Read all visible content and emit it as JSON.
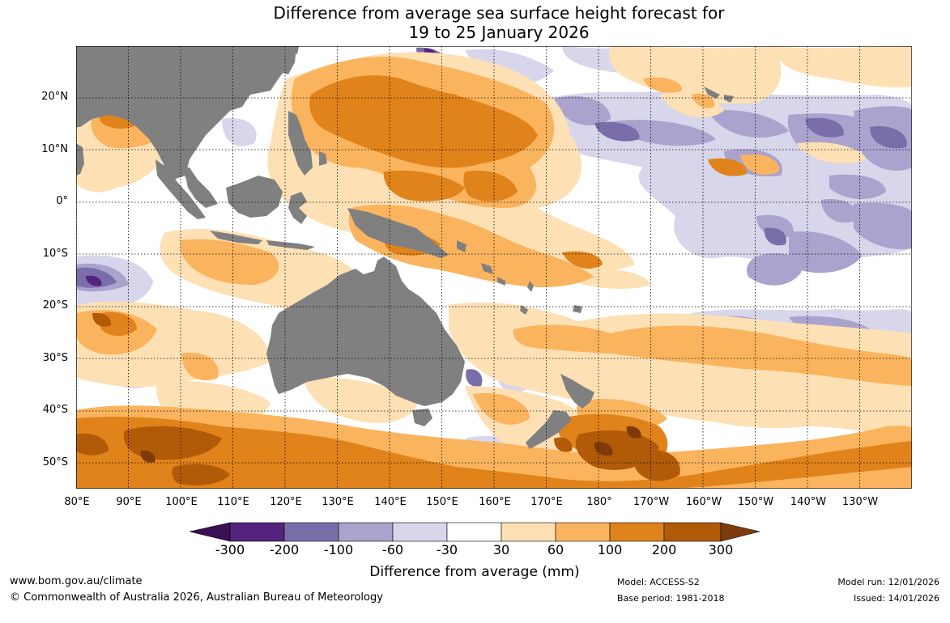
{
  "title": {
    "line1": "Difference from average sea surface height forecast for",
    "line2": "19 to 25 January 2026"
  },
  "map": {
    "region": "Indo-Pacific and Australian region",
    "land_color": "#808080",
    "grid_color": "#000000",
    "lat_labels": [
      "20°N",
      "10°N",
      "0°",
      "10°S",
      "20°S",
      "30°S",
      "40°S",
      "50°S"
    ],
    "lon_labels": [
      "80°E",
      "90°E",
      "100°E",
      "110°E",
      "120°E",
      "130°E",
      "140°E",
      "150°E",
      "160°E",
      "170°E",
      "180°",
      "170°W",
      "160°W",
      "150°W",
      "140°W",
      "130°W"
    ]
  },
  "legend": {
    "title": "Difference from average (mm)",
    "ticks": [
      "-300",
      "-200",
      "-100",
      "-60",
      "-30",
      "30",
      "60",
      "100",
      "200",
      "300"
    ],
    "colors": {
      "below_min": "#3a1055",
      "c1": "#54237e",
      "c2": "#7a6eaa",
      "c3": "#aaa3cd",
      "c4": "#d7d6eb",
      "neutral": "#ffffff",
      "w1": "#fee0b5",
      "w2": "#fbb45e",
      "w3": "#e0831a",
      "w4": "#b15b09",
      "above_max": "#7e3b09"
    }
  },
  "footer": {
    "url": "www.bom.gov.au/climate",
    "copyright": "© Commonwealth of Australia 2026, Australian Bureau of Meteorology",
    "model": "Model: ACCESS-S2",
    "base_period": "Base period: 1981-2018",
    "model_run": "Model run: 12/01/2026",
    "issued": "Issued: 14/01/2026"
  }
}
